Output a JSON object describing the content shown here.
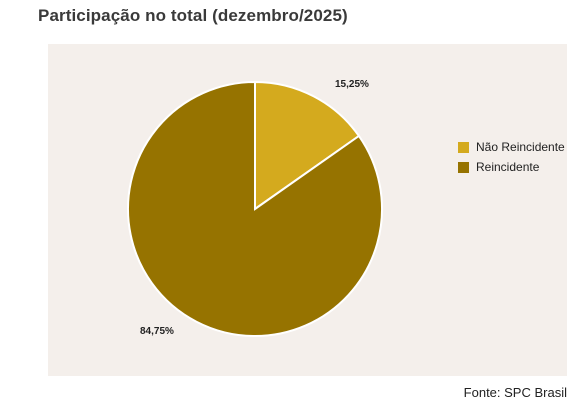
{
  "title": "Participação no total (dezembro/2025)",
  "source": "Fonte: SPC Brasil",
  "chart_data": {
    "type": "pie",
    "title": "Participação no total (dezembro/2025)",
    "categories": [
      "Não Reincidente",
      "Reincidente"
    ],
    "values": [
      15.25,
      84.75
    ],
    "labels": [
      "15,25%",
      "84,75%"
    ],
    "colors": [
      "#d4aa1e",
      "#967300"
    ],
    "legend_position": "right"
  }
}
